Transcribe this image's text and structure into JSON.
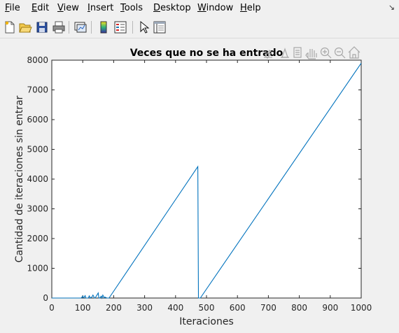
{
  "menu": {
    "file": "File",
    "edit": "Edit",
    "view": "View",
    "insert": "Insert",
    "tools": "Tools",
    "desktop": "Desktop",
    "window": "Window",
    "help": "Help"
  },
  "toolbar_icons": [
    "new-figure-icon",
    "open-icon",
    "save-icon",
    "print-icon",
    "link-plot-icon",
    "colorbar-icon",
    "legend-icon",
    "edit-plot-icon",
    "property-editor-icon"
  ],
  "axes_toolbar_icons": [
    "brush-icon",
    "data-cursor-icon",
    "rotate-icon",
    "pan-icon",
    "zoom-in-icon",
    "zoom-out-icon",
    "home-icon"
  ],
  "chart_data": {
    "type": "line",
    "title": "Veces que no se ha entrado",
    "xlabel": "Iteraciones",
    "ylabel": "Cantidad de iteraciones sin entrar",
    "xlim": [
      0,
      1000
    ],
    "ylim": [
      0,
      8000
    ],
    "xticks": [
      "0",
      "100",
      "200",
      "300",
      "400",
      "500",
      "600",
      "700",
      "800",
      "900",
      "1000"
    ],
    "yticks": [
      "0",
      "1000",
      "2000",
      "3000",
      "4000",
      "5000",
      "6000",
      "7000",
      "8000"
    ],
    "grid": false,
    "line_color": "#0072bd",
    "series": [
      {
        "x": [
          0,
          60,
          95,
          100,
          102,
          108,
          110,
          118,
          121,
          125,
          130,
          133,
          138,
          140,
          150,
          152,
          155,
          160,
          162,
          165,
          170,
          172,
          178,
          180,
          185,
          472,
          474,
          480,
          1000
        ],
        "values": [
          0,
          0,
          0,
          60,
          0,
          80,
          0,
          0,
          70,
          0,
          40,
          100,
          0,
          0,
          170,
          0,
          0,
          60,
          0,
          100,
          0,
          30,
          0,
          0,
          0,
          4420,
          0,
          0,
          7900
        ]
      }
    ]
  }
}
